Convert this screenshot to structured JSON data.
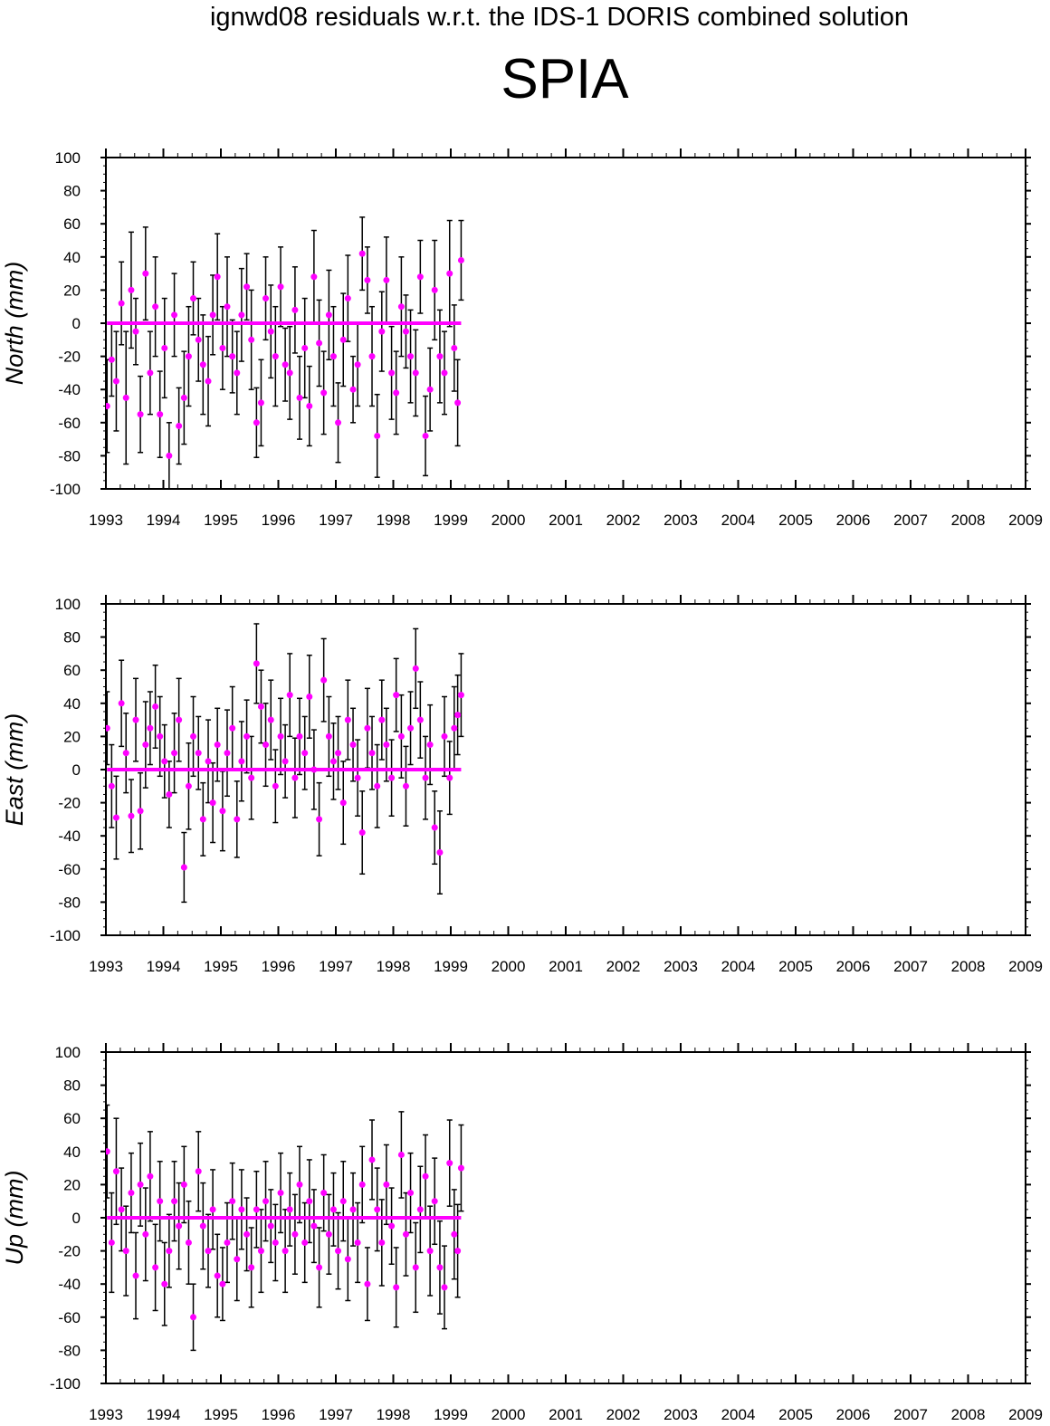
{
  "header": {
    "title": "ignwd08 residuals w.r.t. the IDS-1 DORIS combined solution",
    "station": "SPIA"
  },
  "colors": {
    "marker": "#ff00ff",
    "errorbar": "#000000",
    "axis": "#000000"
  },
  "chart_data": [
    {
      "type": "scatter",
      "ylabel": "North (mm)",
      "xlim": [
        1993,
        2009
      ],
      "ylim": [
        -100,
        100
      ],
      "xticks": [
        "1993",
        "1994",
        "1995",
        "1996",
        "1997",
        "1998",
        "1999",
        "2000",
        "2001",
        "2002",
        "2003",
        "2004",
        "2005",
        "2006",
        "2007",
        "2008",
        "2009"
      ],
      "yticks": [
        "100",
        "80",
        "60",
        "40",
        "20",
        "0",
        "-20",
        "-40",
        "-60",
        "-80",
        "-100"
      ],
      "series": [
        {
          "x": [
            1993.02,
            1993.1,
            1993.18,
            1993.27,
            1993.35,
            1993.44,
            1993.52,
            1993.6,
            1993.69,
            1993.77,
            1993.86,
            1993.94,
            1994.02,
            1994.1,
            1994.19,
            1994.27,
            1994.36,
            1994.44,
            1994.52,
            1994.61,
            1994.69,
            1994.78,
            1994.86,
            1994.94,
            1995.03,
            1995.11,
            1995.2,
            1995.28,
            1995.36,
            1995.45,
            1995.53,
            1995.62,
            1995.7,
            1995.78,
            1995.87,
            1995.95,
            1996.04,
            1996.12,
            1996.2,
            1996.29,
            1996.37,
            1996.46,
            1996.54,
            1996.62,
            1996.71,
            1996.79,
            1996.88,
            1996.96,
            1997.04,
            1997.13,
            1997.21,
            1997.3,
            1997.38,
            1997.46,
            1997.55,
            1997.63,
            1997.72,
            1997.8,
            1997.88,
            1997.97,
            1998.05,
            1998.14,
            1998.22,
            1998.3,
            1998.39,
            1998.47,
            1998.56,
            1998.64,
            1998.72,
            1998.81,
            1998.89,
            1998.98,
            1999.06,
            1999.12,
            1999.18
          ],
          "y": [
            -50,
            -22,
            -35,
            12,
            -45,
            20,
            -5,
            -55,
            30,
            -30,
            10,
            -55,
            -15,
            -80,
            5,
            -62,
            -45,
            -20,
            15,
            -10,
            -25,
            -35,
            5,
            28,
            -15,
            10,
            -20,
            -30,
            5,
            22,
            -10,
            -60,
            -48,
            15,
            -5,
            -20,
            22,
            -25,
            -30,
            8,
            -45,
            -15,
            -50,
            28,
            -12,
            -42,
            5,
            -20,
            -60,
            -10,
            15,
            -40,
            -25,
            42,
            26,
            -20,
            -68,
            -5,
            26,
            -30,
            -42,
            10,
            -5,
            -20,
            -30,
            28,
            -68,
            -40,
            20,
            -20,
            -30,
            30,
            -15,
            -48,
            38
          ],
          "err": [
            28,
            22,
            30,
            25,
            40,
            35,
            20,
            23,
            28,
            25,
            30,
            26,
            30,
            20,
            25,
            23,
            28,
            30,
            22,
            25,
            30,
            27,
            24,
            26,
            25,
            30,
            22,
            25,
            28,
            20,
            30,
            21,
            26,
            25,
            28,
            30,
            24,
            22,
            28,
            26,
            25,
            30,
            24,
            28,
            26,
            25,
            27,
            30,
            24,
            28,
            26,
            20,
            25,
            22,
            20,
            30,
            25,
            24,
            26,
            28,
            25,
            30,
            22,
            28,
            26,
            22,
            24,
            25,
            30,
            28,
            25,
            32,
            26,
            26,
            24
          ]
        }
      ]
    },
    {
      "type": "scatter",
      "ylabel": "East (mm)",
      "xlim": [
        1993,
        2009
      ],
      "ylim": [
        -100,
        100
      ],
      "xticks": [
        "1993",
        "1994",
        "1995",
        "1996",
        "1997",
        "1998",
        "1999",
        "2000",
        "2001",
        "2002",
        "2003",
        "2004",
        "2005",
        "2006",
        "2007",
        "2008",
        "2009"
      ],
      "yticks": [
        "100",
        "80",
        "60",
        "40",
        "20",
        "0",
        "-20",
        "-40",
        "-60",
        "-80",
        "-100"
      ],
      "series": [
        {
          "x": [
            1993.02,
            1993.1,
            1993.18,
            1993.27,
            1993.35,
            1993.44,
            1993.52,
            1993.6,
            1993.69,
            1993.77,
            1993.86,
            1993.94,
            1994.02,
            1994.1,
            1994.19,
            1994.27,
            1994.36,
            1994.44,
            1994.52,
            1994.61,
            1994.69,
            1994.78,
            1994.86,
            1994.94,
            1995.03,
            1995.11,
            1995.2,
            1995.28,
            1995.36,
            1995.45,
            1995.53,
            1995.62,
            1995.7,
            1995.78,
            1995.87,
            1995.95,
            1996.04,
            1996.12,
            1996.2,
            1996.29,
            1996.37,
            1996.46,
            1996.54,
            1996.62,
            1996.71,
            1996.79,
            1996.88,
            1996.96,
            1997.04,
            1997.13,
            1997.21,
            1997.3,
            1997.38,
            1997.46,
            1997.55,
            1997.63,
            1997.72,
            1997.8,
            1997.88,
            1997.97,
            1998.05,
            1998.14,
            1998.22,
            1998.3,
            1998.39,
            1998.47,
            1998.56,
            1998.64,
            1998.72,
            1998.81,
            1998.89,
            1998.98,
            1999.06,
            1999.12,
            1999.18
          ],
          "y": [
            25,
            -10,
            -29,
            40,
            10,
            -28,
            30,
            -25,
            15,
            25,
            38,
            20,
            5,
            -15,
            10,
            30,
            -59,
            -10,
            20,
            10,
            -30,
            5,
            -20,
            15,
            -25,
            10,
            25,
            -30,
            5,
            20,
            -5,
            64,
            38,
            15,
            30,
            -10,
            20,
            5,
            45,
            -5,
            20,
            10,
            44,
            0,
            -30,
            54,
            20,
            5,
            10,
            -20,
            30,
            15,
            -5,
            -38,
            25,
            10,
            -10,
            30,
            15,
            -5,
            45,
            20,
            -10,
            25,
            61,
            30,
            -5,
            15,
            -35,
            -50,
            20,
            -5,
            25,
            33,
            45
          ],
          "err": [
            22,
            25,
            25,
            26,
            24,
            22,
            25,
            23,
            26,
            22,
            25,
            24,
            22,
            20,
            24,
            25,
            21,
            26,
            24,
            22,
            22,
            25,
            24,
            22,
            24,
            26,
            25,
            23,
            24,
            22,
            25,
            24,
            22,
            25,
            24,
            22,
            23,
            22,
            25,
            24,
            23,
            22,
            25,
            24,
            22,
            25,
            24,
            23,
            22,
            25,
            24,
            22,
            23,
            25,
            24,
            22,
            25,
            24,
            22,
            23,
            22,
            25,
            24,
            22,
            24,
            23,
            25,
            24,
            22,
            25,
            24,
            22,
            25,
            24,
            25
          ]
        }
      ]
    },
    {
      "type": "scatter",
      "ylabel": "Up (mm)",
      "xlim": [
        1993,
        2009
      ],
      "ylim": [
        -100,
        100
      ],
      "xticks": [
        "1993",
        "1994",
        "1995",
        "1996",
        "1997",
        "1998",
        "1999",
        "2000",
        "2001",
        "2002",
        "2003",
        "2004",
        "2005",
        "2006",
        "2007",
        "2008",
        "2009"
      ],
      "yticks": [
        "100",
        "80",
        "60",
        "40",
        "20",
        "0",
        "-20",
        "-40",
        "-60",
        "-80",
        "-100"
      ],
      "series": [
        {
          "x": [
            1993.02,
            1993.1,
            1993.18,
            1993.27,
            1993.35,
            1993.44,
            1993.52,
            1993.6,
            1993.69,
            1993.77,
            1993.86,
            1993.94,
            1994.02,
            1994.1,
            1994.19,
            1994.27,
            1994.36,
            1994.44,
            1994.52,
            1994.61,
            1994.69,
            1994.78,
            1994.86,
            1994.94,
            1995.03,
            1995.11,
            1995.2,
            1995.28,
            1995.36,
            1995.45,
            1995.53,
            1995.62,
            1995.7,
            1995.78,
            1995.87,
            1995.95,
            1996.04,
            1996.12,
            1996.2,
            1996.29,
            1996.37,
            1996.46,
            1996.54,
            1996.62,
            1996.71,
            1996.79,
            1996.88,
            1996.96,
            1997.04,
            1997.13,
            1997.21,
            1997.3,
            1997.38,
            1997.46,
            1997.55,
            1997.63,
            1997.72,
            1997.8,
            1997.88,
            1997.97,
            1998.05,
            1998.14,
            1998.22,
            1998.3,
            1998.39,
            1998.47,
            1998.56,
            1998.64,
            1998.72,
            1998.81,
            1998.89,
            1998.98,
            1999.06,
            1999.12,
            1999.18
          ],
          "y": [
            40,
            -15,
            28,
            5,
            -20,
            15,
            -35,
            20,
            -10,
            25,
            -30,
            10,
            -40,
            -20,
            10,
            -5,
            20,
            -15,
            -60,
            28,
            -5,
            -20,
            5,
            -35,
            -40,
            -15,
            10,
            -25,
            5,
            -10,
            -30,
            5,
            -20,
            10,
            -5,
            -15,
            15,
            -20,
            5,
            -10,
            20,
            -15,
            10,
            -5,
            -30,
            15,
            -10,
            5,
            -20,
            10,
            -25,
            5,
            -15,
            20,
            -40,
            35,
            5,
            -15,
            20,
            -5,
            -42,
            38,
            -10,
            15,
            -30,
            5,
            25,
            -20,
            10,
            -30,
            -42,
            33,
            -10,
            -20,
            30
          ],
          "err": [
            28,
            30,
            32,
            25,
            27,
            24,
            26,
            25,
            28,
            27,
            26,
            24,
            25,
            22,
            24,
            26,
            23,
            25,
            20,
            24,
            26,
            22,
            24,
            25,
            22,
            24,
            23,
            25,
            24,
            22,
            24,
            23,
            25,
            24,
            22,
            23,
            24,
            25,
            22,
            24,
            23,
            24,
            25,
            22,
            24,
            23,
            24,
            22,
            23,
            24,
            25,
            22,
            24,
            23,
            22,
            24,
            25,
            26,
            24,
            23,
            24,
            26,
            25,
            24,
            27,
            26,
            25,
            27,
            26,
            28,
            25,
            26,
            27,
            28,
            26
          ]
        }
      ]
    }
  ]
}
